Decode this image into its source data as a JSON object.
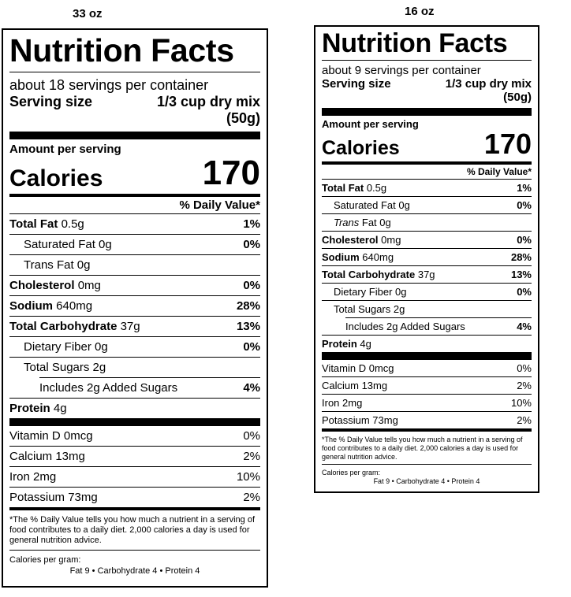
{
  "labels": [
    {
      "size_title": "33 oz",
      "heading": "Nutrition Facts",
      "servings_per_container": "about 18 servings per container",
      "serving_size_label": "Serving size",
      "serving_size_value": "1/3 cup dry mix",
      "serving_size_grams": "(50g)",
      "amount_per_serving": "Amount per serving",
      "calories_label": "Calories",
      "calories_value": "170",
      "daily_value_header": "% Daily Value*",
      "total_fat": {
        "name": "Total Fat",
        "amount": "0.5g",
        "dv": "1%"
      },
      "saturated_fat": {
        "name": "Saturated Fat 0g",
        "dv": "0%"
      },
      "trans_fat": {
        "name": "Trans Fat 0g"
      },
      "cholesterol": {
        "name": "Cholesterol",
        "amount": "0mg",
        "dv": "0%"
      },
      "sodium": {
        "name": "Sodium",
        "amount": "640mg",
        "dv": "28%"
      },
      "total_carbohydrate": {
        "name": "Total Carbohydrate",
        "amount": "37g",
        "dv": "13%"
      },
      "dietary_fiber": {
        "name": "Dietary Fiber 0g",
        "dv": "0%"
      },
      "total_sugars": {
        "name": "Total Sugars 2g"
      },
      "added_sugars": {
        "name": "Includes 2g Added Sugars",
        "dv": "4%"
      },
      "protein": {
        "name": "Protein",
        "amount": "4g"
      },
      "vitamin_d": {
        "name": "Vitamin D 0mcg",
        "dv": "0%"
      },
      "calcium": {
        "name": "Calcium 13mg",
        "dv": "2%"
      },
      "iron": {
        "name": "Iron 2mg",
        "dv": "10%"
      },
      "potassium": {
        "name": "Potassium 73mg",
        "dv": "2%"
      },
      "footnote": "*The % Daily Value tells you how much a nutrient in a serving of food contributes to a daily diet. 2,000 calories a day is used for general nutrition advice.",
      "calories_per_gram": "Calories per gram:",
      "calories_per_gram_values": "Fat 9  •  Carbohydrate 4  •  Protein 4"
    },
    {
      "size_title": "16 oz",
      "heading": "Nutrition Facts",
      "servings_per_container": "about 9 servings per container",
      "serving_size_label": "Serving size",
      "serving_size_value": "1/3 cup dry mix",
      "serving_size_grams": "(50g)",
      "amount_per_serving": "Amount per serving",
      "calories_label": "Calories",
      "calories_value": "170",
      "daily_value_header": "% Daily Value*",
      "total_fat": {
        "name": "Total Fat",
        "amount": "0.5g",
        "dv": "1%"
      },
      "saturated_fat": {
        "name": "Saturated Fat 0g",
        "dv": "0%"
      },
      "trans_fat": {
        "name": "Trans",
        "rest": "Fat 0g"
      },
      "cholesterol": {
        "name": "Cholesterol",
        "amount": "0mg",
        "dv": "0%"
      },
      "sodium": {
        "name": "Sodium",
        "amount": "640mg",
        "dv": "28%"
      },
      "total_carbohydrate": {
        "name": "Total Carbohydrate",
        "amount": "37g",
        "dv": "13%"
      },
      "dietary_fiber": {
        "name": "Dietary Fiber 0g",
        "dv": "0%"
      },
      "total_sugars": {
        "name": "Total Sugars 2g"
      },
      "added_sugars": {
        "name": "Includes 2g Added Sugars",
        "dv": "4%"
      },
      "protein": {
        "name": "Protein",
        "amount": "4g"
      },
      "vitamin_d": {
        "name": "Vitamin D 0mcg",
        "dv": "0%"
      },
      "calcium": {
        "name": "Calcium 13mg",
        "dv": "2%"
      },
      "iron": {
        "name": "Iron 2mg",
        "dv": "10%"
      },
      "potassium": {
        "name": "Potassium 73mg",
        "dv": "2%"
      },
      "footnote": "*The % Daily Value tells you how much a nutrient in a serving of food contributes to a daily diet. 2,000 calories a day is used for general nutrition advice.",
      "calories_per_gram": "Calories per gram:",
      "calories_per_gram_values": "Fat 9  •  Carbohydrate 4  •  Protein 4"
    }
  ]
}
